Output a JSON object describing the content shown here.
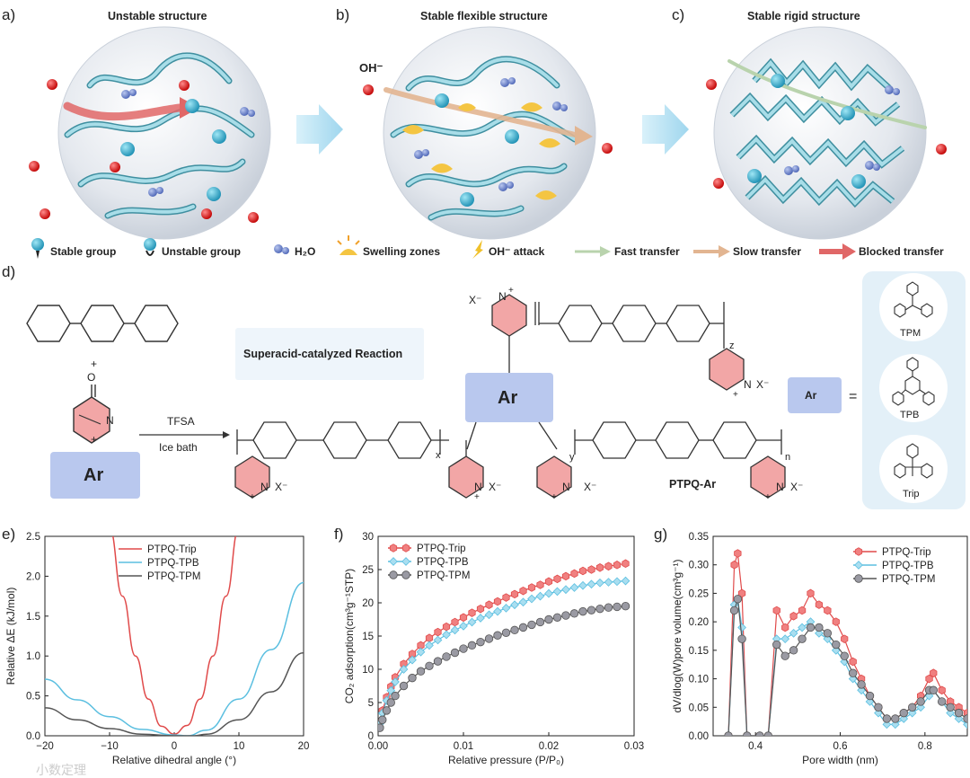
{
  "panels": {
    "a": {
      "label": "a)",
      "title": "Unstable structure"
    },
    "b": {
      "label": "b)",
      "title": "Stable flexible structure",
      "ion": "OH⁻"
    },
    "c": {
      "label": "c)",
      "title": "Stable rigid structure"
    },
    "d": {
      "label": "d)"
    },
    "e": {
      "label": "e)"
    },
    "f": {
      "label": "f)"
    },
    "g": {
      "label": "g)"
    }
  },
  "legend": [
    {
      "icon": "stable-group-icon",
      "text": "Stable group"
    },
    {
      "icon": "unstable-group-icon",
      "text": "Unstable group"
    },
    {
      "icon": "water-icon",
      "text": "H₂O"
    },
    {
      "icon": "swelling-zone-icon",
      "text": "Swelling zones"
    },
    {
      "icon": "oh-attack-icon",
      "text": "OH⁻ attack"
    },
    {
      "icon": "fast-transfer-icon",
      "text": "Fast transfer",
      "color": "#b9d3ad"
    },
    {
      "icon": "slow-transfer-icon",
      "text": "Slow transfer",
      "color": "#e2b591"
    },
    {
      "icon": "blocked-transfer-icon",
      "text": "Blocked transfer",
      "color": "#e06767"
    }
  ],
  "scheme": {
    "reaction_box": "Superacid-catalyzed Reaction",
    "reagent": "TFSA",
    "condition": "Ice bath",
    "plus": "+",
    "ar": "Ar",
    "equals": "=",
    "product": "PTPQ-Ar",
    "anion": "X⁻",
    "nitrogen": "N",
    "cation": "+",
    "oxygen": "O",
    "subscripts": {
      "x": "x",
      "y": "y",
      "z": "z",
      "n": "n"
    },
    "ar_options": [
      "TPM",
      "TPB",
      "Trip"
    ]
  },
  "colors": {
    "trip": "#e04a4a",
    "tpb": "#5bbfe0",
    "tpm": "#555555",
    "fill_trip": "#f08080",
    "fill_tpb": "#a9def0",
    "fill_tpm": "#9a9aa3"
  },
  "chart_data": [
    {
      "id": "e",
      "type": "line",
      "xlabel": "Relative dihedral angle (°)",
      "ylabel": "Relative ΔE (kJ/mol)",
      "xlim": [
        -20,
        20
      ],
      "ylim": [
        0,
        2.5
      ],
      "xticks": [
        "−20",
        "−10",
        "0",
        "10",
        "20"
      ],
      "yticks": [
        "0.0",
        "0.5",
        "1.0",
        "1.5",
        "2.0",
        "2.5"
      ],
      "legend_position": "top-right",
      "series": [
        {
          "name": "PTPQ-Trip",
          "x": [
            -10,
            -8,
            -6,
            -4,
            -2,
            0,
            2,
            4,
            6,
            8,
            10
          ],
          "y": [
            2.6,
            1.75,
            1.0,
            0.46,
            0.12,
            0.02,
            0.13,
            0.46,
            1.0,
            1.75,
            2.6
          ]
        },
        {
          "name": "PTPQ-TPB",
          "x": [
            -20,
            -15,
            -10,
            -5,
            0,
            2,
            5,
            10,
            15,
            20
          ],
          "y": [
            0.71,
            0.45,
            0.24,
            0.08,
            0.01,
            0.0,
            0.07,
            0.46,
            1.08,
            1.92
          ]
        },
        {
          "name": "PTPQ-TPM",
          "x": [
            -20,
            -15,
            -10,
            -5,
            0,
            3,
            5,
            10,
            15,
            20
          ],
          "y": [
            0.35,
            0.2,
            0.09,
            0.02,
            0.0,
            0.0,
            0.02,
            0.2,
            0.55,
            1.04
          ]
        }
      ]
    },
    {
      "id": "f",
      "type": "line",
      "xlabel": "Relative pressure (P/P₀)",
      "ylabel": "CO₂ adsorption(cm³g⁻¹STP)",
      "xlim": [
        0,
        0.03
      ],
      "ylim": [
        0,
        30
      ],
      "xticks": [
        "0.00",
        "0.01",
        "0.02",
        "0.03"
      ],
      "yticks": [
        "0",
        "5",
        "10",
        "15",
        "20",
        "25",
        "30"
      ],
      "legend_position": "top-left",
      "series": [
        {
          "name": "PTPQ-Trip",
          "x": [
            0.0002,
            0.0005,
            0.001,
            0.0015,
            0.002,
            0.003,
            0.004,
            0.005,
            0.006,
            0.007,
            0.008,
            0.009,
            0.01,
            0.011,
            0.012,
            0.013,
            0.014,
            0.015,
            0.016,
            0.017,
            0.018,
            0.019,
            0.02,
            0.021,
            0.022,
            0.023,
            0.024,
            0.025,
            0.026,
            0.027,
            0.028,
            0.029
          ],
          "y": [
            2.0,
            3.8,
            5.8,
            7.4,
            8.8,
            10.8,
            12.3,
            13.6,
            14.7,
            15.6,
            16.4,
            17.1,
            17.8,
            18.5,
            19.1,
            19.7,
            20.2,
            20.8,
            21.3,
            21.8,
            22.3,
            22.7,
            23.2,
            23.6,
            24.0,
            24.4,
            24.8,
            25.0,
            25.3,
            25.5,
            25.7,
            25.9
          ]
        },
        {
          "name": "PTPQ-TPB",
          "x": [
            0.0002,
            0.0005,
            0.001,
            0.0015,
            0.002,
            0.003,
            0.004,
            0.005,
            0.006,
            0.007,
            0.008,
            0.009,
            0.01,
            0.011,
            0.012,
            0.013,
            0.014,
            0.015,
            0.016,
            0.017,
            0.018,
            0.019,
            0.02,
            0.021,
            0.022,
            0.023,
            0.024,
            0.025,
            0.026,
            0.027,
            0.028,
            0.029
          ],
          "y": [
            1.8,
            3.4,
            5.3,
            6.8,
            8.1,
            10.0,
            11.4,
            12.6,
            13.6,
            14.4,
            15.2,
            15.9,
            16.5,
            17.1,
            17.7,
            18.2,
            18.7,
            19.2,
            19.7,
            20.1,
            20.6,
            21.0,
            21.4,
            21.7,
            22.0,
            22.3,
            22.6,
            22.8,
            23.0,
            23.1,
            23.2,
            23.3
          ]
        },
        {
          "name": "PTPQ-TPM",
          "x": [
            0.0002,
            0.0005,
            0.001,
            0.0015,
            0.002,
            0.003,
            0.004,
            0.005,
            0.006,
            0.007,
            0.008,
            0.009,
            0.01,
            0.011,
            0.012,
            0.013,
            0.014,
            0.015,
            0.016,
            0.017,
            0.018,
            0.019,
            0.02,
            0.021,
            0.022,
            0.023,
            0.024,
            0.025,
            0.026,
            0.027,
            0.028,
            0.029
          ],
          "y": [
            1.2,
            2.4,
            3.8,
            5.0,
            6.0,
            7.5,
            8.7,
            9.7,
            10.5,
            11.2,
            11.9,
            12.5,
            13.1,
            13.6,
            14.1,
            14.6,
            15.1,
            15.5,
            15.9,
            16.3,
            16.7,
            17.1,
            17.5,
            17.8,
            18.1,
            18.4,
            18.7,
            18.9,
            19.1,
            19.3,
            19.4,
            19.5
          ]
        }
      ]
    },
    {
      "id": "g",
      "type": "line",
      "xlabel": "Pore width (nm)",
      "ylabel": "dV/dlog(W)pore volume(cm³g⁻¹)",
      "xlim": [
        0.3,
        0.9
      ],
      "ylim": [
        0,
        0.35
      ],
      "xticks": [
        "0.4",
        "0.6",
        "0.8"
      ],
      "yticks": [
        "0.00",
        "0.05",
        "0.10",
        "0.15",
        "0.20",
        "0.25",
        "0.30",
        "0.35"
      ],
      "legend_position": "top-right",
      "series": [
        {
          "name": "PTPQ-Trip",
          "x": [
            0.336,
            0.35,
            0.358,
            0.368,
            0.38,
            0.41,
            0.43,
            0.45,
            0.47,
            0.49,
            0.51,
            0.53,
            0.55,
            0.57,
            0.59,
            0.61,
            0.63,
            0.65,
            0.67,
            0.69,
            0.71,
            0.73,
            0.75,
            0.77,
            0.79,
            0.81,
            0.82,
            0.84,
            0.86,
            0.88,
            0.9
          ],
          "y": [
            0.0,
            0.3,
            0.32,
            0.25,
            0.0,
            0.0,
            0.0,
            0.22,
            0.19,
            0.21,
            0.22,
            0.25,
            0.23,
            0.22,
            0.2,
            0.17,
            0.13,
            0.1,
            0.07,
            0.05,
            0.03,
            0.03,
            0.04,
            0.05,
            0.07,
            0.1,
            0.11,
            0.08,
            0.06,
            0.05,
            0.04
          ]
        },
        {
          "name": "PTPQ-TPB",
          "x": [
            0.336,
            0.35,
            0.358,
            0.368,
            0.38,
            0.41,
            0.43,
            0.45,
            0.47,
            0.49,
            0.51,
            0.53,
            0.55,
            0.57,
            0.59,
            0.61,
            0.63,
            0.65,
            0.67,
            0.69,
            0.71,
            0.73,
            0.75,
            0.77,
            0.79,
            0.81,
            0.82,
            0.84,
            0.86,
            0.88,
            0.9
          ],
          "y": [
            0.0,
            0.23,
            0.24,
            0.19,
            0.0,
            0.0,
            0.0,
            0.17,
            0.17,
            0.18,
            0.19,
            0.2,
            0.18,
            0.17,
            0.15,
            0.13,
            0.1,
            0.08,
            0.06,
            0.04,
            0.02,
            0.02,
            0.03,
            0.04,
            0.05,
            0.07,
            0.08,
            0.06,
            0.04,
            0.03,
            0.02
          ]
        },
        {
          "name": "PTPQ-TPM",
          "x": [
            0.336,
            0.35,
            0.358,
            0.368,
            0.38,
            0.41,
            0.43,
            0.45,
            0.47,
            0.49,
            0.51,
            0.53,
            0.55,
            0.57,
            0.59,
            0.61,
            0.63,
            0.65,
            0.67,
            0.69,
            0.71,
            0.73,
            0.75,
            0.77,
            0.79,
            0.81,
            0.82,
            0.84,
            0.86,
            0.88,
            0.9
          ],
          "y": [
            0.0,
            0.22,
            0.24,
            0.17,
            0.0,
            0.0,
            0.0,
            0.16,
            0.14,
            0.15,
            0.17,
            0.19,
            0.19,
            0.18,
            0.16,
            0.14,
            0.11,
            0.09,
            0.07,
            0.05,
            0.03,
            0.03,
            0.04,
            0.05,
            0.06,
            0.08,
            0.08,
            0.06,
            0.05,
            0.04,
            0.03
          ]
        }
      ]
    }
  ],
  "watermark": "小数定理"
}
